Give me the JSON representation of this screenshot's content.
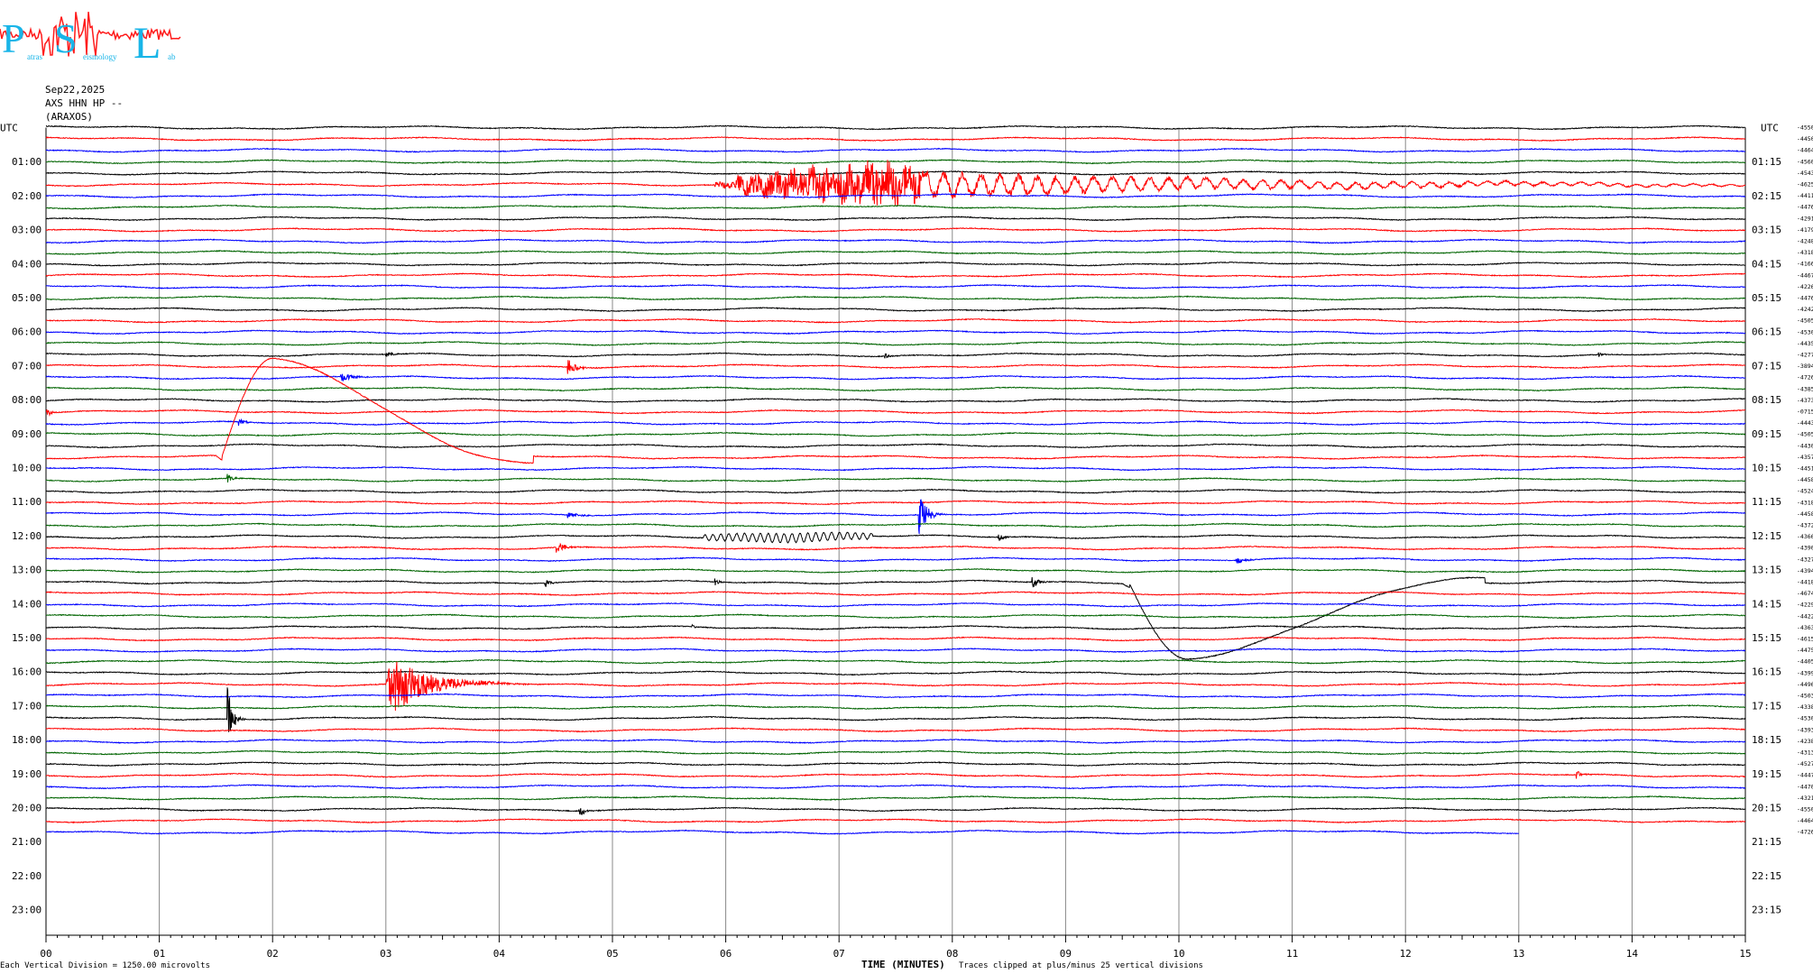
{
  "logo": {
    "text_p": "P",
    "text_s": "S",
    "text_l": "L",
    "small_1": "atras",
    "small_2": "eismology",
    "small_3": "ab",
    "color_text": "#19b5e8",
    "color_trace": "#ff1a1a"
  },
  "header": {
    "date": "Sep22,2025",
    "station_line": "AXS HHN HP --",
    "station_name": "(ARAXOS)"
  },
  "axes_labels": {
    "left_top": "UTC",
    "right_top": "UTC"
  },
  "chart_data": {
    "type": "line",
    "title": "",
    "xlabel": "TIME (MINUTES)",
    "x_range": [
      0,
      15
    ],
    "x_ticks": [
      "00",
      "01",
      "02",
      "03",
      "04",
      "05",
      "06",
      "07",
      "08",
      "09",
      "10",
      "11",
      "12",
      "13",
      "14",
      "15"
    ],
    "left_hour_labels": [
      "01:00",
      "02:00",
      "03:00",
      "04:00",
      "05:00",
      "06:00",
      "07:00",
      "08:00",
      "09:00",
      "10:00",
      "11:00",
      "12:00",
      "13:00",
      "14:00",
      "15:00",
      "16:00",
      "17:00",
      "18:00",
      "19:00",
      "20:00",
      "21:00",
      "22:00",
      "23:00"
    ],
    "right_hour_labels": [
      "01:15",
      "02:15",
      "03:15",
      "04:15",
      "05:15",
      "06:15",
      "07:15",
      "08:15",
      "09:15",
      "10:15",
      "11:15",
      "12:15",
      "13:15",
      "14:15",
      "15:15",
      "16:15",
      "17:15",
      "18:15",
      "19:15",
      "20:15",
      "21:15",
      "22:15",
      "23:15"
    ],
    "trace_colors": [
      "#000000",
      "#ff0000",
      "#0000ff",
      "#006400"
    ],
    "num_traces": 63,
    "last_trace_end_minute": 13.0,
    "trace_offsets": [
      "-4550",
      "-4450",
      "-4464",
      "-4560",
      "-4543",
      "-4625",
      "-4411",
      "-4476",
      "-4291",
      "-4179",
      "-4248",
      "-4318",
      "-4166",
      "-4467",
      "-4226",
      "-4476",
      "-4242",
      "-4505",
      "-4530",
      "-4435",
      "-4277",
      "-3894",
      "-4726",
      "-4385",
      "-4373",
      "-0715",
      "-4443",
      "-4505",
      "-4430",
      "-4357",
      "-4451",
      "-4458",
      "-4524",
      "-4318",
      "-4458",
      "-4372",
      "-4366",
      "-4390",
      "-4327",
      "-4394",
      "-4418",
      "-4674",
      "-4229",
      "-4422",
      "-4363",
      "-4615",
      "-4475",
      "-4405",
      "-4399",
      "-4496",
      "-4503",
      "-4338",
      "-4530",
      "-4393",
      "-4238",
      "-4313",
      "-4527",
      "-4447",
      "-4470",
      "-4321",
      "-4550",
      "-4464",
      "-4726"
    ],
    "events": [
      {
        "trace": 5,
        "start_minute": 5.9,
        "duration_minutes": 9.1,
        "amplitude": 22,
        "kind": "teleseism"
      },
      {
        "trace": 20,
        "start_minute": 3.0,
        "duration_minutes": 0.2,
        "amplitude": 5,
        "kind": "spike"
      },
      {
        "trace": 20,
        "start_minute": 7.4,
        "duration_minutes": 0.2,
        "amplitude": 4,
        "kind": "spike"
      },
      {
        "trace": 20,
        "start_minute": 13.7,
        "duration_minutes": 0.15,
        "amplitude": 3,
        "kind": "spike"
      },
      {
        "trace": 21,
        "start_minute": 4.6,
        "duration_minutes": 0.3,
        "amplitude": 12,
        "kind": "spike"
      },
      {
        "trace": 22,
        "start_minute": 2.6,
        "duration_minutes": 0.4,
        "amplitude": 7,
        "kind": "spike"
      },
      {
        "trace": 25,
        "start_minute": 0.0,
        "duration_minutes": 0.2,
        "amplitude": 5,
        "kind": "spike"
      },
      {
        "trace": 26,
        "start_minute": 1.7,
        "duration_minutes": 0.2,
        "amplitude": 5,
        "kind": "spike"
      },
      {
        "trace": 29,
        "start_minute": 1.5,
        "duration_minutes": 2.8,
        "amplitude": 110,
        "kind": "pulse"
      },
      {
        "trace": 31,
        "start_minute": 1.6,
        "duration_minutes": 0.2,
        "amplitude": 6,
        "kind": "spike"
      },
      {
        "trace": 34,
        "start_minute": 7.7,
        "duration_minutes": 0.3,
        "amplitude": 30,
        "kind": "spike"
      },
      {
        "trace": 34,
        "start_minute": 4.6,
        "duration_minutes": 0.4,
        "amplitude": 4,
        "kind": "spike"
      },
      {
        "trace": 36,
        "start_minute": 5.8,
        "duration_minutes": 1.5,
        "amplitude": 5,
        "kind": "burst"
      },
      {
        "trace": 36,
        "start_minute": 8.4,
        "duration_minutes": 0.2,
        "amplitude": 6,
        "kind": "spike"
      },
      {
        "trace": 37,
        "start_minute": 4.5,
        "duration_minutes": 0.4,
        "amplitude": 6,
        "kind": "spike"
      },
      {
        "trace": 38,
        "start_minute": 10.5,
        "duration_minutes": 0.3,
        "amplitude": 5,
        "kind": "spike"
      },
      {
        "trace": 40,
        "start_minute": 4.4,
        "duration_minutes": 0.15,
        "amplitude": 8,
        "kind": "spike"
      },
      {
        "trace": 40,
        "start_minute": 5.9,
        "duration_minutes": 0.15,
        "amplitude": 7,
        "kind": "spike"
      },
      {
        "trace": 40,
        "start_minute": 8.7,
        "duration_minutes": 0.2,
        "amplitude": 10,
        "kind": "spike"
      },
      {
        "trace": 40,
        "start_minute": 9.5,
        "duration_minutes": 3.2,
        "amplitude": 85,
        "kind": "pulse"
      },
      {
        "trace": 44,
        "start_minute": 5.7,
        "duration_minutes": 0.1,
        "amplitude": 3,
        "kind": "spike"
      },
      {
        "trace": 49,
        "start_minute": 3.0,
        "duration_minutes": 1.3,
        "amplitude": 35,
        "kind": "quake"
      },
      {
        "trace": 52,
        "start_minute": 1.6,
        "duration_minutes": 0.2,
        "amplitude": 40,
        "kind": "spike"
      },
      {
        "trace": 57,
        "start_minute": 13.5,
        "duration_minutes": 0.2,
        "amplitude": 6,
        "kind": "spike"
      },
      {
        "trace": 60,
        "start_minute": 4.7,
        "duration_minutes": 0.2,
        "amplitude": 10,
        "kind": "spike"
      }
    ]
  },
  "footer": {
    "scale_text": "Each Vertical Division = 1250.00 microvolts",
    "clip_text": "Traces clipped at plus/minus 25 vertical divisions"
  }
}
